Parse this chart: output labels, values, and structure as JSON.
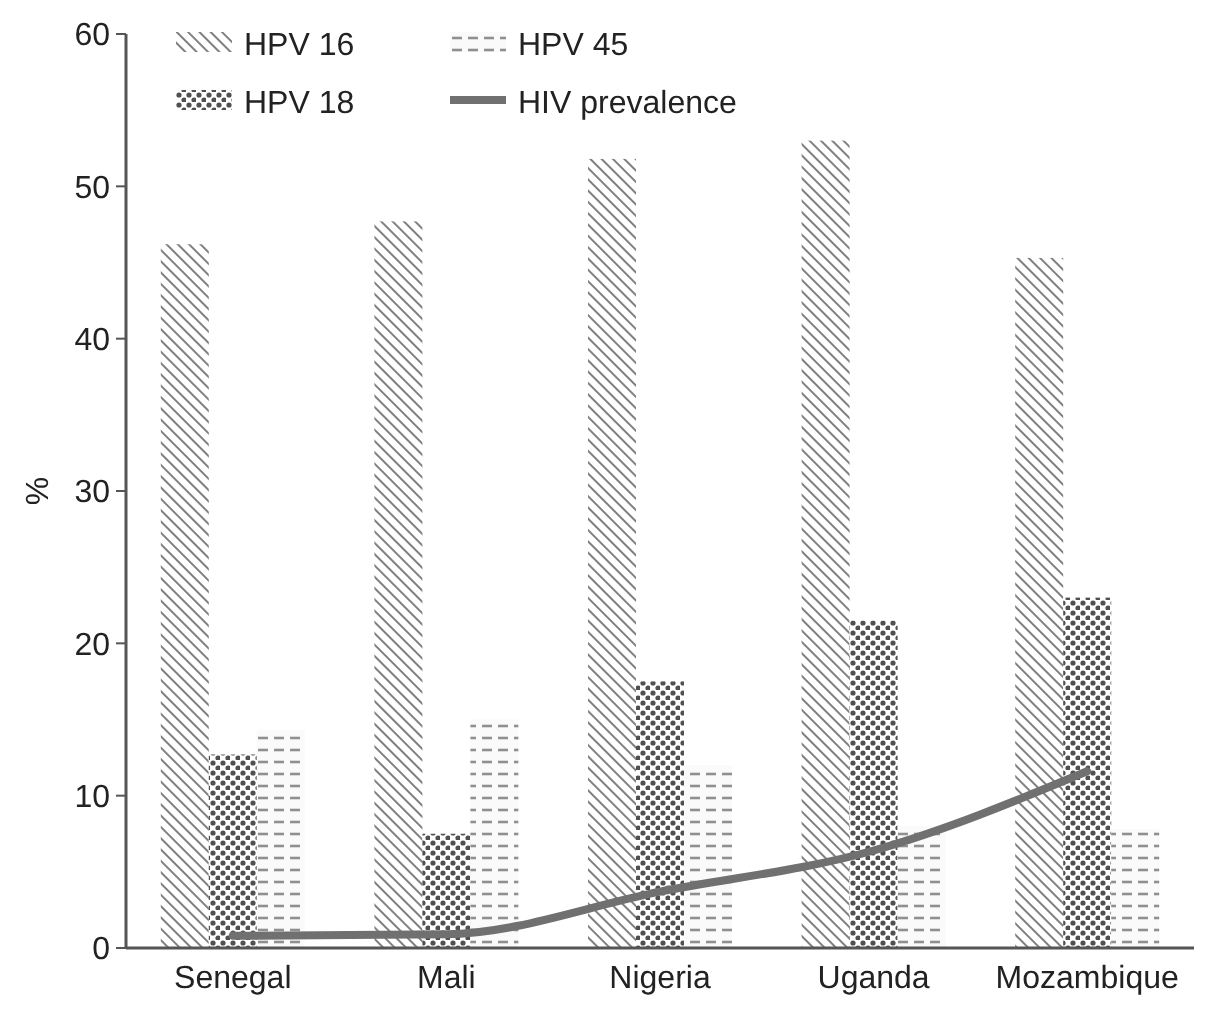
{
  "chart_data": {
    "type": "bar",
    "ylabel": "%",
    "categories": [
      "Senegal",
      "Mali",
      "Nigeria",
      "Uganda",
      "Mozambique"
    ],
    "series": [
      {
        "name": "HPV 16",
        "color": "#808080",
        "values": [
          46.2,
          47.7,
          51.8,
          53,
          45.3
        ]
      },
      {
        "name": "HPV 18",
        "color": "#505050",
        "values": [
          12.7,
          7.5,
          17.5,
          21.5,
          23
        ]
      },
      {
        "name": "HPV 45",
        "color": "#909090",
        "values": [
          14.3,
          15,
          12,
          8,
          7.8
        ]
      },
      {
        "name": "HIV prevalence",
        "type": "line",
        "color": "#707070",
        "values": [
          0.8,
          0.9,
          3.7,
          6.4,
          11.6
        ]
      }
    ],
    "ylim": [
      0,
      60
    ],
    "yticks": [
      0,
      10,
      20,
      30,
      40,
      50,
      60
    ],
    "legend": "top left",
    "grid": false
  }
}
